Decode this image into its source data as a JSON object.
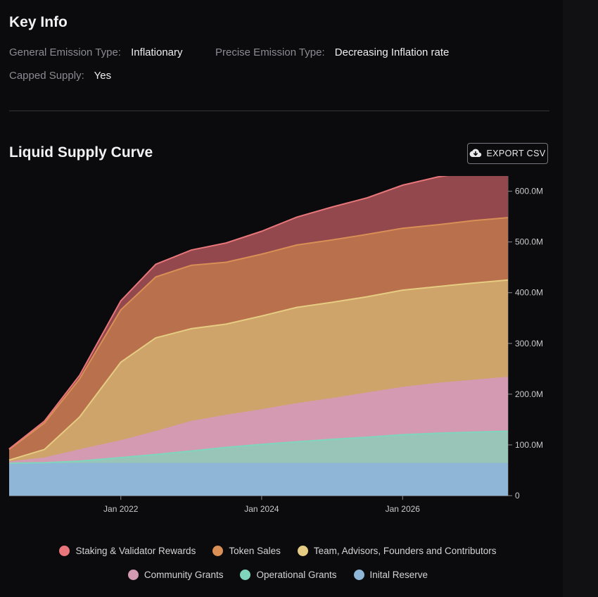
{
  "key_info": {
    "title": "Key Info",
    "general_emission_type": {
      "label": "General Emission Type:",
      "value": "Inflationary"
    },
    "precise_emission_type": {
      "label": "Precise Emission Type:",
      "value": "Decreasing Inflation rate"
    },
    "capped_supply": {
      "label": "Capped Supply:",
      "value": "Yes"
    }
  },
  "chart_section": {
    "title": "Liquid Supply Curve",
    "export_label": "EXPORT CSV",
    "export_icon": "cloud-download-icon"
  },
  "chart_data": {
    "type": "area",
    "stacked": true,
    "x": [
      "2020-06-01",
      "2020-12-01",
      "2021-06-01",
      "2022-01-01",
      "2022-07-01",
      "2023-01-01",
      "2023-07-01",
      "2024-01-01",
      "2024-07-01",
      "2025-01-01",
      "2025-07-01",
      "2026-01-01",
      "2026-07-01",
      "2027-01-01",
      "2027-07-01"
    ],
    "x_ticks": [
      {
        "date": "2022-01-01",
        "label": "Jan 2022"
      },
      {
        "date": "2024-01-01",
        "label": "Jan 2024"
      },
      {
        "date": "2026-01-01",
        "label": "Jan 2026"
      }
    ],
    "y_ticks": [
      {
        "value": 0,
        "label": "0"
      },
      {
        "value": 100,
        "label": "100.0M"
      },
      {
        "value": 200,
        "label": "200.0M"
      },
      {
        "value": 300,
        "label": "300.0M"
      },
      {
        "value": 400,
        "label": "400.0M"
      },
      {
        "value": 500,
        "label": "500.0M"
      },
      {
        "value": 600,
        "label": "600.0M"
      }
    ],
    "ylim": [
      0,
      630
    ],
    "y_unit": "M",
    "y_axis_side": "right",
    "grid": false,
    "legend_position": "bottom",
    "series": [
      {
        "name": "Inital Reserve",
        "color": "#8fb6d6",
        "line": "#8fb6d6",
        "values": [
          63,
          63,
          63,
          63,
          63,
          63,
          63,
          63,
          63,
          63,
          63,
          63,
          63,
          63,
          63
        ]
      },
      {
        "name": "Operational Grants",
        "color": "#98c5b8",
        "line": "#7fd6bd",
        "values": [
          1,
          2,
          5,
          12,
          18,
          25,
          32,
          38,
          43,
          48,
          52,
          57,
          60,
          62,
          64
        ]
      },
      {
        "name": "Community Grants",
        "color": "#d49ab2",
        "line": "#d49ab2",
        "values": [
          2,
          9,
          22,
          33,
          45,
          58,
          63,
          68,
          75,
          80,
          87,
          93,
          98,
          102,
          106
        ]
      },
      {
        "name": "Team, Advisors, Founders and Contributors",
        "color": "#cfa46a",
        "line": "#e6cc82",
        "values": [
          4,
          17,
          65,
          155,
          185,
          183,
          180,
          185,
          190,
          190,
          190,
          192,
          191,
          192,
          192
        ]
      },
      {
        "name": "Token Sales",
        "color": "#b8714c",
        "line": "#d98f55",
        "values": [
          21,
          52,
          75,
          103,
          120,
          125,
          122,
          122,
          123,
          123,
          123,
          122,
          122,
          123,
          123
        ]
      },
      {
        "name": "Staking & Validator Rewards",
        "color": "#92484c",
        "line": "#e8767a",
        "values": [
          1,
          4,
          7,
          18,
          25,
          30,
          38,
          45,
          55,
          65,
          72,
          85,
          94,
          97,
          102
        ]
      }
    ]
  }
}
